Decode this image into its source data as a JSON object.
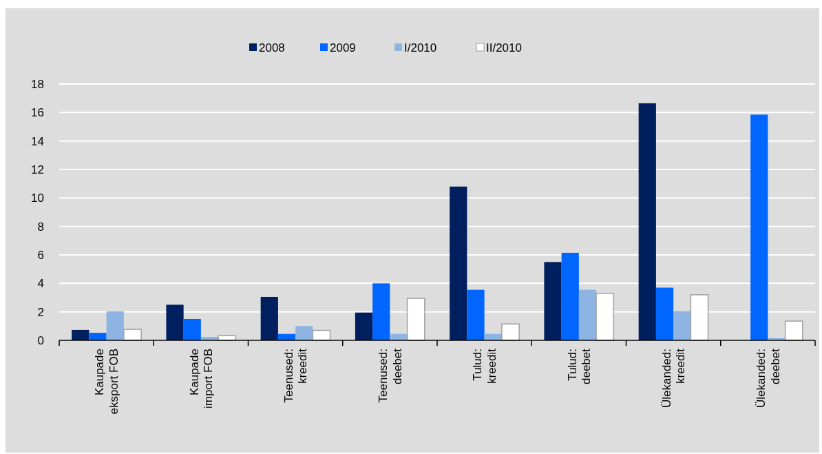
{
  "chart_data": {
    "type": "bar",
    "categories": [
      "Kaupade\neksport FOB",
      "Kaupade\nimport FOB",
      "Teenused:\nkreedit",
      "Teenused:\ndeebet",
      "Tulud:\nkreedit",
      "Tulud:\ndeebet",
      "Ülekanded:\nkreedit",
      "Ülekanded:\ndeebet"
    ],
    "series": [
      {
        "name": "2008",
        "color": "#001f5f",
        "values": [
          0.73,
          2.5,
          3.05,
          1.95,
          10.8,
          5.5,
          16.65,
          null
        ]
      },
      {
        "name": "2009",
        "color": "#0066ff",
        "values": [
          0.53,
          1.5,
          0.45,
          4.0,
          3.55,
          6.15,
          3.7,
          15.85
        ]
      },
      {
        "name": "I/2010",
        "color": "#8eb4e3",
        "values": [
          2.03,
          0.24,
          1.0,
          0.45,
          0.45,
          3.55,
          2.05,
          0.15
        ]
      },
      {
        "name": "II/2010",
        "color": "#ffffff",
        "values": [
          0.77,
          0.33,
          0.7,
          2.95,
          1.15,
          3.3,
          3.2,
          1.35
        ]
      }
    ],
    "ylim": [
      0,
      18
    ],
    "yticks": [
      0,
      2,
      4,
      6,
      8,
      10,
      12,
      14,
      16,
      18
    ],
    "grid": "y",
    "legend": "top"
  }
}
